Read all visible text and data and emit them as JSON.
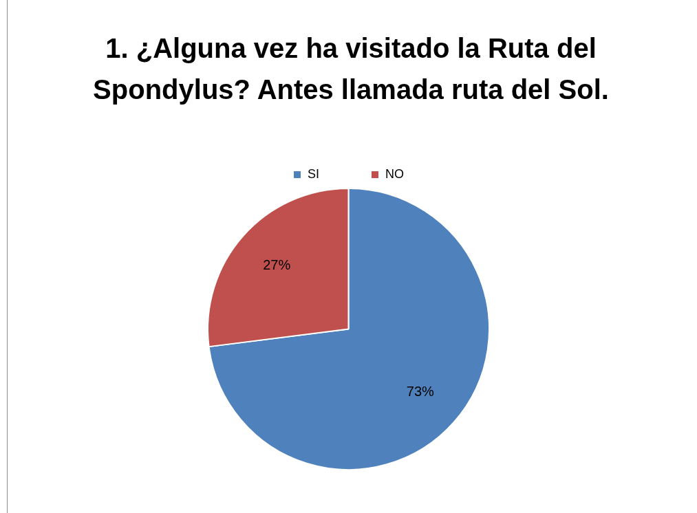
{
  "chart_data": {
    "type": "pie",
    "title": "1. ¿Alguna vez ha visitado la Ruta del Spondylus? Antes llamada ruta del Sol.",
    "categories": [
      "SI",
      "NO"
    ],
    "values": [
      73,
      27
    ],
    "value_labels": [
      "73%",
      "27%"
    ],
    "colors": [
      "#4f81bd",
      "#c0504d"
    ],
    "legend": "top"
  }
}
